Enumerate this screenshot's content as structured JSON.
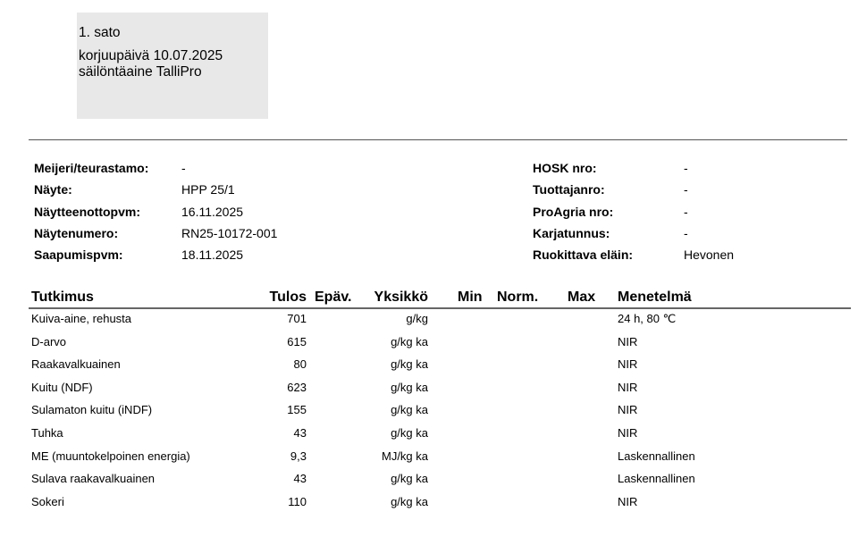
{
  "header_box": {
    "title": "1. sato",
    "harvest_date": "korjuupäivä 10.07.2025",
    "preservative": "säilöntäaine TalliPro"
  },
  "info_left": [
    {
      "label": "Meijeri/teurastamo:",
      "value": "-"
    },
    {
      "label": "Näyte:",
      "value": "HPP 25/1"
    },
    {
      "label": "Näytteenottopvm:",
      "value": "16.11.2025"
    },
    {
      "label": "Näytenumero:",
      "value": "RN25-10172-001"
    },
    {
      "label": "Saapumispvm:",
      "value": "18.11.2025"
    }
  ],
  "info_right": [
    {
      "label": "HOSK nro:",
      "value": "-"
    },
    {
      "label": "Tuottajanro:",
      "value": "-"
    },
    {
      "label": "ProAgria nro:",
      "value": "-"
    },
    {
      "label": "Karjatunnus:",
      "value": "-"
    },
    {
      "label": "Ruokittava eläin:",
      "value": "Hevonen"
    }
  ],
  "table": {
    "headers": {
      "tutkimus": "Tutkimus",
      "tulos": "Tulos",
      "epav": "Epäv.",
      "yksikko": "Yksikkö",
      "min": "Min",
      "norm": "Norm.",
      "max": "Max",
      "menetelma": "Menetelmä"
    },
    "rows": [
      {
        "tutkimus": "Kuiva-aine, rehusta",
        "tulos": "701",
        "yksikko": "g/kg",
        "menetelma": "24 h, 80 ℃"
      },
      {
        "tutkimus": "D-arvo",
        "tulos": "615",
        "yksikko": "g/kg ka",
        "menetelma": "NIR"
      },
      {
        "tutkimus": "Raakavalkuainen",
        "tulos": "80",
        "yksikko": "g/kg ka",
        "menetelma": "NIR"
      },
      {
        "tutkimus": "Kuitu (NDF)",
        "tulos": "623",
        "yksikko": "g/kg ka",
        "menetelma": "NIR"
      },
      {
        "tutkimus": "Sulamaton kuitu (iNDF)",
        "tulos": "155",
        "yksikko": "g/kg ka",
        "menetelma": "NIR"
      },
      {
        "tutkimus": "Tuhka",
        "tulos": "43",
        "yksikko": "g/kg ka",
        "menetelma": "NIR"
      },
      {
        "tutkimus": "ME (muuntokelpoinen energia)",
        "tulos": "9,3",
        "yksikko": "MJ/kg ka",
        "menetelma": "Laskennallinen"
      },
      {
        "tutkimus": "Sulava raakavalkuainen",
        "tulos": "43",
        "yksikko": "g/kg ka",
        "menetelma": "Laskennallinen"
      },
      {
        "tutkimus": "Sokeri",
        "tulos": "110",
        "yksikko": "g/kg ka",
        "menetelma": "NIR"
      }
    ]
  }
}
